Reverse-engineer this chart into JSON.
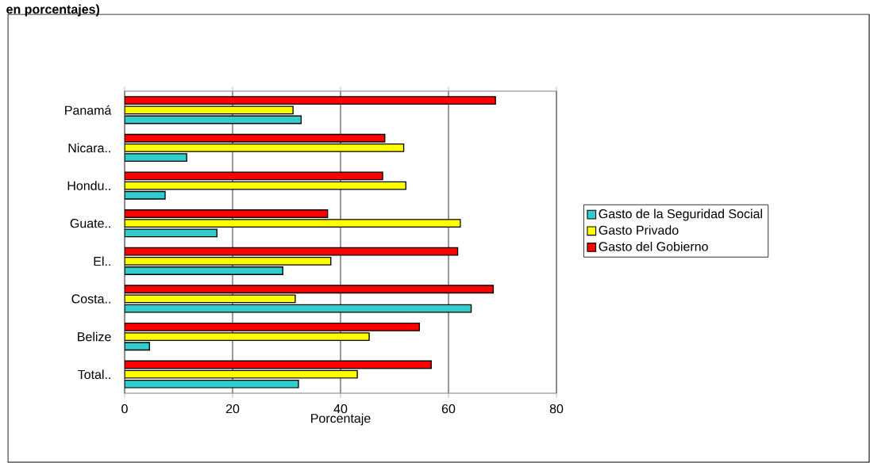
{
  "chart_data": {
    "type": "bar",
    "orientation": "horizontal",
    "title": "en porcentajes)",
    "xlabel": "Porcentaje",
    "categories": [
      "Panamá",
      "Nicara..",
      "Hondu..",
      "Guate..",
      "El..",
      "Costa..",
      "Belize",
      "Total.."
    ],
    "series": [
      {
        "name": "Gasto de la Seguridad Social",
        "color": "#33cccc",
        "values": [
          32.7,
          11.5,
          7.5,
          17.1,
          29.3,
          64.2,
          4.6,
          32.2
        ]
      },
      {
        "name": "Gasto Privado",
        "color": "#ffff00",
        "values": [
          31.2,
          51.7,
          52.1,
          62.2,
          38.2,
          31.6,
          45.3,
          43.1
        ]
      },
      {
        "name": "Gasto del Gobierno",
        "color": "#ff0000",
        "values": [
          68.7,
          48.2,
          47.8,
          37.6,
          61.7,
          68.3,
          54.6,
          56.8
        ]
      }
    ],
    "xlim": [
      0,
      80
    ],
    "xticks": [
      0,
      20,
      40,
      60,
      80
    ],
    "grid": "x",
    "legend": "right"
  }
}
